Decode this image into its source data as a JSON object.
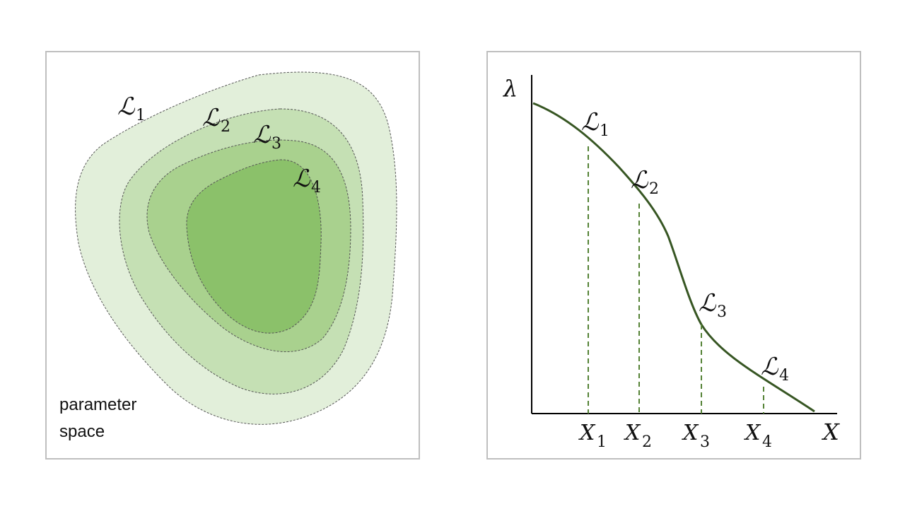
{
  "left_panel": {
    "caption_line1": "parameter",
    "caption_line2": "space",
    "contours": [
      {
        "sym": "ℒ",
        "sub": "1",
        "fill": "#e2efda"
      },
      {
        "sym": "ℒ",
        "sub": "2",
        "fill": "#c5e0b4"
      },
      {
        "sym": "ℒ",
        "sub": "3",
        "fill": "#a9d18e"
      },
      {
        "sym": "ℒ",
        "sub": "4",
        "fill": "#8bc16a"
      }
    ]
  },
  "right_panel": {
    "y_axis_label": "λ",
    "x_axis_label": "X",
    "curve_color": "#375623",
    "dash_color": "#548235",
    "curve_labels": [
      {
        "sym": "ℒ",
        "sub": "1"
      },
      {
        "sym": "ℒ",
        "sub": "2"
      },
      {
        "sym": "ℒ",
        "sub": "3"
      },
      {
        "sym": "ℒ",
        "sub": "4"
      }
    ],
    "x_ticks": [
      {
        "sym": "X",
        "sub": "1"
      },
      {
        "sym": "X",
        "sub": "2"
      },
      {
        "sym": "X",
        "sub": "3"
      },
      {
        "sym": "X",
        "sub": "4"
      }
    ]
  }
}
